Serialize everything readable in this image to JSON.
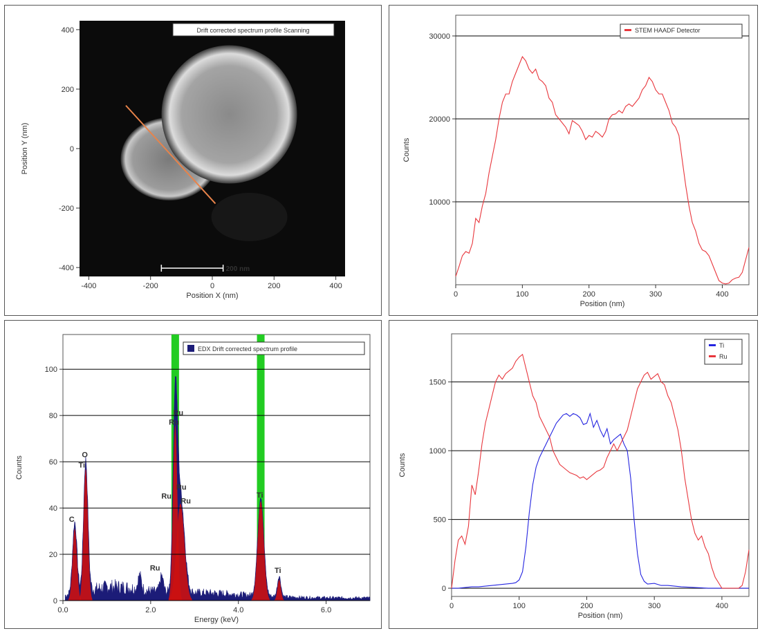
{
  "colors": {
    "stem_line": "#e8363c",
    "ti_line": "#2424e0",
    "ru_line": "#e8363c",
    "edx_fill": "#1c1c78",
    "edx_peak_fill": "#cc1111",
    "marker_band": "#22cc22",
    "scan_line": "#e8834a",
    "grid": "#000000"
  },
  "chart_data": [
    {
      "id": "haadf_image",
      "type": "image",
      "title": "Drift corrected spectrum profile Scanning",
      "xlabel": "Position X (nm)",
      "ylabel": "Position Y (nm)",
      "xlim": [
        -430,
        430
      ],
      "ylim": [
        -430,
        430
      ],
      "xticks": [
        -400,
        -200,
        0,
        200,
        400
      ],
      "yticks": [
        -400,
        -200,
        0,
        200,
        400
      ],
      "scan_line": {
        "start": [
          -280,
          145
        ],
        "end": [
          10,
          -185
        ]
      },
      "scale_bar": {
        "length_nm": 200,
        "label": "200 nm"
      }
    },
    {
      "id": "stem_profile",
      "type": "line",
      "xlabel": "Position (nm)",
      "ylabel": "Counts",
      "xlim": [
        0,
        440
      ],
      "ylim": [
        0,
        32500
      ],
      "xticks": [
        0,
        100,
        200,
        300,
        400
      ],
      "yticks": [
        10000,
        20000,
        30000
      ],
      "grid": true,
      "legend_position": "top-right",
      "series": [
        {
          "name": "STEM HAADF Detector",
          "color": "#e8363c",
          "x": [
            0,
            5,
            10,
            15,
            20,
            25,
            30,
            35,
            40,
            45,
            50,
            55,
            60,
            65,
            70,
            75,
            80,
            85,
            90,
            95,
            100,
            105,
            110,
            115,
            120,
            125,
            130,
            135,
            140,
            145,
            150,
            155,
            160,
            165,
            170,
            175,
            180,
            185,
            190,
            195,
            200,
            205,
            210,
            215,
            220,
            225,
            230,
            235,
            240,
            245,
            250,
            255,
            260,
            265,
            270,
            275,
            280,
            285,
            290,
            295,
            300,
            305,
            310,
            315,
            320,
            325,
            330,
            335,
            340,
            345,
            350,
            355,
            360,
            365,
            370,
            375,
            380,
            385,
            390,
            395,
            400,
            405,
            410,
            415,
            420,
            425,
            430,
            435,
            440
          ],
          "y": [
            1000,
            2200,
            3500,
            4000,
            3800,
            5000,
            8000,
            7500,
            9500,
            11000,
            13500,
            15500,
            17500,
            20000,
            22000,
            23000,
            23000,
            24500,
            25500,
            26500,
            27500,
            27000,
            26000,
            25500,
            26000,
            24800,
            24500,
            24000,
            22500,
            22000,
            20500,
            20000,
            19500,
            19000,
            18200,
            19800,
            19500,
            19200,
            18500,
            17500,
            18000,
            17800,
            18500,
            18200,
            17800,
            18500,
            20000,
            20500,
            20600,
            21000,
            20700,
            21500,
            21800,
            21500,
            22000,
            22500,
            23500,
            24000,
            25000,
            24500,
            23500,
            23000,
            23000,
            22000,
            21000,
            19500,
            19000,
            18000,
            15000,
            12000,
            9500,
            7500,
            6500,
            5000,
            4200,
            4000,
            3500,
            2500,
            1500,
            500,
            200,
            100,
            200,
            600,
            800,
            900,
            1500,
            3000,
            4500
          ]
        }
      ]
    },
    {
      "id": "edx_spectrum",
      "type": "area",
      "xlabel": "Energy (keV)",
      "ylabel": "Counts",
      "xlim": [
        0,
        7
      ],
      "ylim": [
        0,
        115
      ],
      "xticks": [
        0.0,
        2.0,
        4.0,
        6.0
      ],
      "xtick_labels": [
        "0.0",
        "2.0",
        "4.0",
        "6.0"
      ],
      "yticks": [
        0,
        20,
        40,
        60,
        80,
        100
      ],
      "grid": true,
      "legend_position": "top-right",
      "legend": "EDX Drift corrected spectrum profile",
      "marker_bands": [
        2.56,
        4.51
      ],
      "peaks": [
        {
          "center": 0.27,
          "height": 31,
          "width": 0.05
        },
        {
          "center": 0.52,
          "height": 57,
          "width": 0.05
        },
        {
          "center": 2.56,
          "height": 76,
          "width": 0.05
        },
        {
          "center": 2.68,
          "height": 42,
          "width": 0.09
        },
        {
          "center": 4.51,
          "height": 43,
          "width": 0.07
        },
        {
          "center": 4.93,
          "height": 9,
          "width": 0.04
        },
        {
          "center": 2.25,
          "height": 7,
          "width": 0.04
        },
        {
          "center": 1.75,
          "height": 6,
          "width": 0.04
        }
      ],
      "annotations": [
        {
          "text": "C",
          "x": 0.2,
          "y": 34
        },
        {
          "text": "O",
          "x": 0.5,
          "y": 62
        },
        {
          "text": "Ti",
          "x": 0.43,
          "y": 57.5
        },
        {
          "text": "Ru",
          "x": 2.63,
          "y": 80
        },
        {
          "text": "Ru",
          "x": 2.53,
          "y": 76
        },
        {
          "text": "Ru",
          "x": 2.7,
          "y": 48
        },
        {
          "text": "Ru",
          "x": 2.36,
          "y": 44
        },
        {
          "text": "Ru",
          "x": 2.8,
          "y": 42
        },
        {
          "text": "Ru",
          "x": 2.1,
          "y": 13
        },
        {
          "text": "Ti",
          "x": 4.49,
          "y": 44.5
        },
        {
          "text": "Ti",
          "x": 4.9,
          "y": 12
        }
      ]
    },
    {
      "id": "element_profiles",
      "type": "line",
      "xlabel": "Position (nm)",
      "ylabel": "Counts",
      "xlim": [
        0,
        440
      ],
      "ylim": [
        -60,
        1850
      ],
      "xticks": [
        0,
        100,
        200,
        300,
        400
      ],
      "yticks": [
        0,
        500,
        1000,
        1500
      ],
      "grid": true,
      "legend_position": "top-right",
      "series": [
        {
          "name": "Ti",
          "color": "#2424e0",
          "x": [
            0,
            10,
            20,
            30,
            40,
            50,
            60,
            70,
            80,
            90,
            95,
            100,
            105,
            110,
            115,
            120,
            125,
            130,
            135,
            140,
            145,
            150,
            155,
            160,
            165,
            170,
            175,
            180,
            185,
            190,
            195,
            200,
            205,
            210,
            215,
            220,
            225,
            230,
            235,
            240,
            245,
            250,
            255,
            260,
            265,
            270,
            275,
            280,
            285,
            290,
            300,
            310,
            320,
            340,
            360,
            380,
            400,
            420,
            440
          ],
          "y": [
            0,
            0,
            5,
            10,
            10,
            15,
            20,
            25,
            30,
            35,
            40,
            60,
            120,
            300,
            550,
            750,
            880,
            950,
            1000,
            1050,
            1100,
            1150,
            1200,
            1230,
            1260,
            1270,
            1250,
            1270,
            1260,
            1240,
            1190,
            1200,
            1270,
            1170,
            1220,
            1150,
            1100,
            1160,
            1050,
            1080,
            1100,
            1120,
            1050,
            1000,
            800,
            500,
            250,
            100,
            50,
            30,
            35,
            20,
            20,
            10,
            5,
            0,
            0,
            0,
            0
          ]
        },
        {
          "name": "Ru",
          "color": "#e8363c",
          "x": [
            0,
            5,
            10,
            15,
            20,
            25,
            30,
            35,
            40,
            45,
            50,
            55,
            60,
            65,
            70,
            75,
            80,
            85,
            90,
            95,
            100,
            105,
            110,
            115,
            120,
            125,
            130,
            135,
            140,
            145,
            150,
            155,
            160,
            165,
            170,
            175,
            180,
            185,
            190,
            195,
            200,
            205,
            210,
            215,
            220,
            225,
            230,
            235,
            240,
            245,
            250,
            255,
            260,
            265,
            270,
            275,
            280,
            285,
            290,
            295,
            300,
            305,
            310,
            315,
            320,
            325,
            330,
            335,
            340,
            345,
            350,
            355,
            360,
            365,
            370,
            375,
            380,
            385,
            390,
            395,
            400,
            405,
            410,
            415,
            420,
            425,
            430,
            435,
            440
          ],
          "y": [
            0,
            200,
            350,
            380,
            320,
            450,
            750,
            680,
            850,
            1050,
            1200,
            1300,
            1400,
            1500,
            1550,
            1520,
            1560,
            1580,
            1600,
            1650,
            1680,
            1700,
            1600,
            1500,
            1400,
            1350,
            1250,
            1200,
            1150,
            1100,
            1000,
            950,
            900,
            880,
            860,
            840,
            830,
            820,
            800,
            810,
            790,
            810,
            830,
            850,
            860,
            880,
            950,
            1000,
            1050,
            1000,
            1050,
            1100,
            1150,
            1250,
            1350,
            1450,
            1500,
            1550,
            1570,
            1520,
            1540,
            1560,
            1500,
            1480,
            1400,
            1350,
            1250,
            1150,
            1000,
            800,
            650,
            500,
            400,
            350,
            380,
            300,
            250,
            150,
            80,
            40,
            0,
            0,
            0,
            0,
            0,
            0,
            20,
            120,
            280
          ]
        }
      ]
    }
  ]
}
